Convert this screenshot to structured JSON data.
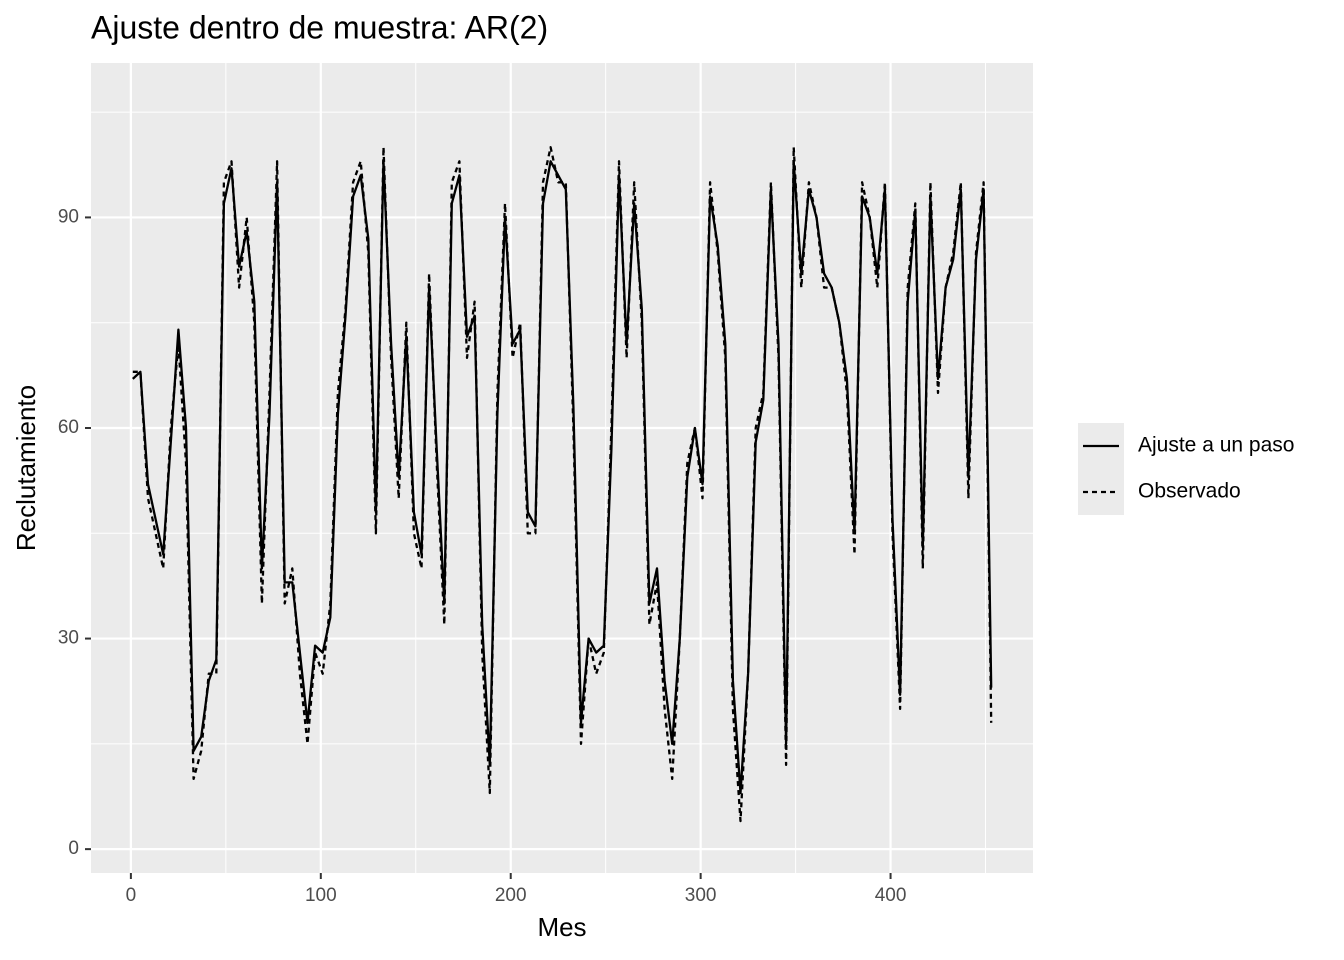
{
  "chart_data": {
    "type": "line",
    "title": "Ajuste dentro de muestra: AR(2)",
    "x_label": "Mes",
    "y_label": "Reclutamiento",
    "x": [
      1,
      5,
      9,
      13,
      17,
      21,
      25,
      29,
      33,
      37,
      41,
      45,
      49,
      53,
      57,
      61,
      65,
      69,
      73,
      77,
      81,
      85,
      89,
      93,
      97,
      101,
      105,
      109,
      113,
      117,
      121,
      125,
      129,
      133,
      137,
      141,
      145,
      149,
      153,
      157,
      161,
      165,
      169,
      173,
      177,
      181,
      185,
      189,
      193,
      197,
      201,
      205,
      209,
      213,
      217,
      221,
      225,
      229,
      233,
      237,
      241,
      245,
      249,
      253,
      257,
      261,
      265,
      269,
      273,
      277,
      281,
      285,
      289,
      293,
      297,
      301,
      305,
      309,
      313,
      317,
      321,
      325,
      329,
      333,
      337,
      341,
      345,
      349,
      353,
      357,
      361,
      365,
      369,
      373,
      377,
      381,
      385,
      389,
      393,
      397,
      401,
      405,
      409,
      413,
      417,
      421,
      425,
      429,
      433,
      437,
      441,
      445,
      449,
      453
    ],
    "series": [
      {
        "name": "Ajuste a un paso",
        "color": "#000000",
        "dash": "solid",
        "values": [
          67,
          68,
          52,
          47,
          42,
          58,
          74,
          60,
          14,
          16,
          24,
          27,
          92,
          97,
          83,
          88,
          78,
          40,
          62,
          95,
          38,
          38,
          28,
          18,
          29,
          28,
          33,
          62,
          76,
          93,
          96,
          87,
          48,
          98,
          72,
          53,
          73,
          48,
          42,
          80,
          57,
          35,
          92,
          96,
          73,
          76,
          32,
          12,
          62,
          90,
          72,
          74,
          48,
          46,
          92,
          98,
          96,
          94,
          63,
          18,
          30,
          28,
          29,
          57,
          96,
          72,
          92,
          77,
          35,
          40,
          24,
          15,
          30,
          53,
          60,
          52,
          93,
          86,
          72,
          24,
          8,
          25,
          58,
          64,
          94,
          72,
          15,
          98,
          82,
          94,
          90,
          82,
          80,
          75,
          67,
          45,
          93,
          90,
          82,
          94,
          47,
          22,
          78,
          91,
          43,
          93,
          67,
          80,
          84,
          94,
          53,
          84,
          94,
          23
        ]
      },
      {
        "name": "Observado",
        "color": "#000000",
        "dash": "dashed",
        "values": [
          68,
          68,
          50,
          45,
          40,
          60,
          72,
          55,
          10,
          14,
          25,
          25,
          95,
          98,
          80,
          90,
          75,
          35,
          65,
          98,
          35,
          40,
          25,
          15,
          28,
          25,
          35,
          65,
          77,
          95,
          98,
          85,
          45,
          100,
          70,
          50,
          75,
          45,
          40,
          82,
          55,
          32,
          95,
          98,
          70,
          78,
          28,
          8,
          65,
          92,
          70,
          75,
          45,
          45,
          95,
          100,
          95,
          95,
          60,
          15,
          30,
          25,
          28,
          60,
          98,
          70,
          95,
          75,
          32,
          38,
          20,
          10,
          30,
          55,
          60,
          50,
          95,
          85,
          70,
          20,
          4,
          25,
          60,
          65,
          95,
          70,
          12,
          100,
          80,
          95,
          90,
          80,
          80,
          75,
          65,
          42,
          95,
          90,
          80,
          95,
          45,
          20,
          80,
          92,
          40,
          95,
          65,
          80,
          85,
          95,
          50,
          85,
          95,
          18
        ]
      }
    ],
    "xlim": [
      -21,
      475
    ],
    "ylim": [
      -3.4,
      112
    ],
    "xticks": [
      0,
      100,
      200,
      300,
      400
    ],
    "yticks": [
      0,
      30,
      60,
      90
    ],
    "grid": true,
    "legend_position": "right"
  }
}
